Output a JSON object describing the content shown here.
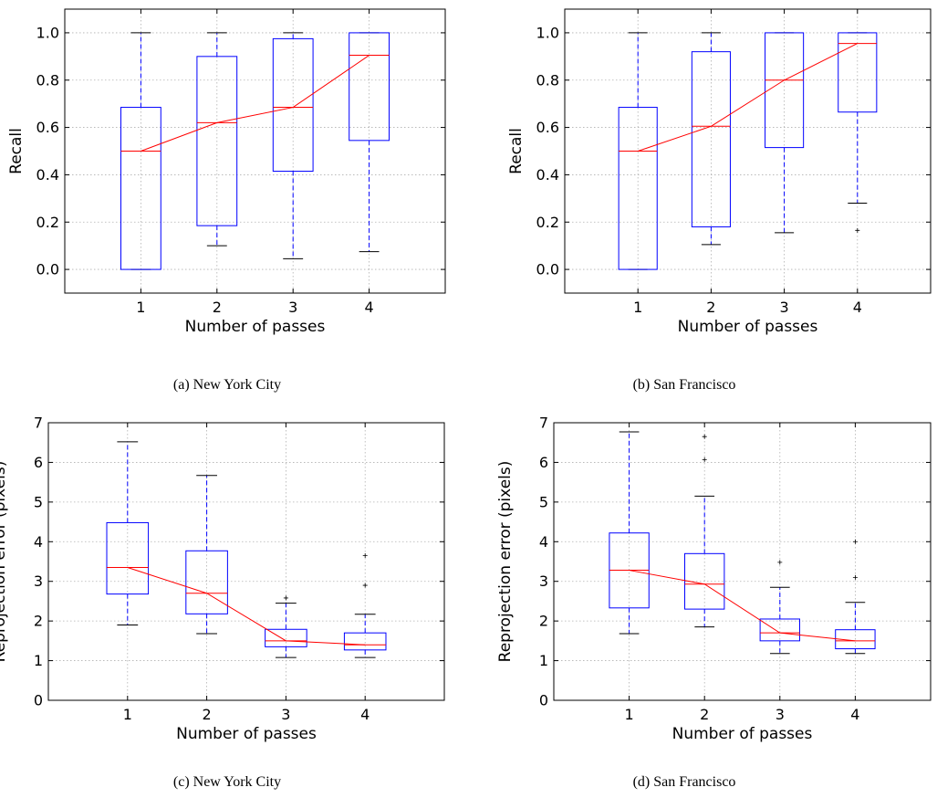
{
  "charts": [
    {
      "type": "box",
      "caption": "(a) New York City",
      "xlabel": "Number of passes",
      "ylabel": "Recall",
      "categories": [
        "1",
        "2",
        "3",
        "4"
      ],
      "ylim": [
        -0.1,
        1.1
      ],
      "yticks": [
        0.0,
        0.2,
        0.4,
        0.6,
        0.8,
        1.0
      ],
      "ytick_labels": [
        "0.0",
        "0.2",
        "0.4",
        "0.6",
        "0.8",
        "1.0"
      ],
      "grid": true,
      "box_color": "#0000ff",
      "median_color": "#ff0000",
      "trend_color": "#ff0000",
      "boxes": [
        {
          "whislo": 0.0,
          "q1": 0.0,
          "med": 0.5,
          "q3": 0.685,
          "whishi": 1.0,
          "fliers": []
        },
        {
          "whislo": 0.1,
          "q1": 0.185,
          "med": 0.62,
          "q3": 0.9,
          "whishi": 1.0,
          "fliers": []
        },
        {
          "whislo": 0.045,
          "q1": 0.415,
          "med": 0.685,
          "q3": 0.975,
          "whishi": 1.0,
          "fliers": []
        },
        {
          "whislo": 0.075,
          "q1": 0.545,
          "med": 0.905,
          "q3": 1.0,
          "whishi": 1.0,
          "fliers": []
        }
      ],
      "trend": [
        0.5,
        0.62,
        0.685,
        0.905
      ]
    },
    {
      "type": "box",
      "caption": "(b) San Francisco",
      "xlabel": "Number of passes",
      "ylabel": "Recall",
      "categories": [
        "1",
        "2",
        "3",
        "4"
      ],
      "ylim": [
        -0.1,
        1.1
      ],
      "yticks": [
        0.0,
        0.2,
        0.4,
        0.6,
        0.8,
        1.0
      ],
      "ytick_labels": [
        "0.0",
        "0.2",
        "0.4",
        "0.6",
        "0.8",
        "1.0"
      ],
      "grid": true,
      "box_color": "#0000ff",
      "median_color": "#ff0000",
      "trend_color": "#ff0000",
      "boxes": [
        {
          "whislo": 0.0,
          "q1": 0.0,
          "med": 0.5,
          "q3": 0.685,
          "whishi": 1.0,
          "fliers": []
        },
        {
          "whislo": 0.105,
          "q1": 0.18,
          "med": 0.605,
          "q3": 0.92,
          "whishi": 1.0,
          "fliers": []
        },
        {
          "whislo": 0.155,
          "q1": 0.515,
          "med": 0.8,
          "q3": 1.0,
          "whishi": 1.0,
          "fliers": []
        },
        {
          "whislo": 0.28,
          "q1": 0.665,
          "med": 0.955,
          "q3": 1.0,
          "whishi": 1.0,
          "fliers": [
            0.165
          ]
        }
      ],
      "trend": [
        0.5,
        0.605,
        0.8,
        0.955
      ]
    },
    {
      "type": "box",
      "caption": "(c) New York City",
      "xlabel": "Number of passes",
      "ylabel": "Reprojection error (pixels)",
      "categories": [
        "1",
        "2",
        "3",
        "4"
      ],
      "ylim": [
        0,
        7
      ],
      "yticks": [
        0,
        1,
        2,
        3,
        4,
        5,
        6,
        7
      ],
      "ytick_labels": [
        "0",
        "1",
        "2",
        "3",
        "4",
        "5",
        "6",
        "7"
      ],
      "grid": true,
      "box_color": "#0000ff",
      "median_color": "#ff0000",
      "trend_color": "#ff0000",
      "boxes": [
        {
          "whislo": 1.9,
          "q1": 2.68,
          "med": 3.35,
          "q3": 4.48,
          "whishi": 6.52,
          "fliers": []
        },
        {
          "whislo": 1.68,
          "q1": 2.18,
          "med": 2.7,
          "q3": 3.77,
          "whishi": 5.67,
          "fliers": []
        },
        {
          "whislo": 1.08,
          "q1": 1.35,
          "med": 1.5,
          "q3": 1.79,
          "whishi": 2.45,
          "fliers": [
            2.58
          ]
        },
        {
          "whislo": 1.08,
          "q1": 1.27,
          "med": 1.4,
          "q3": 1.7,
          "whishi": 2.17,
          "fliers": [
            2.9,
            3.65
          ]
        }
      ],
      "trend": [
        3.35,
        2.7,
        1.5,
        1.4
      ]
    },
    {
      "type": "box",
      "caption": "(d) San Francisco",
      "xlabel": "Number of passes",
      "ylabel": "Reprojection error (pixels)",
      "categories": [
        "1",
        "2",
        "3",
        "4"
      ],
      "ylim": [
        0,
        7
      ],
      "yticks": [
        0,
        1,
        2,
        3,
        4,
        5,
        6,
        7
      ],
      "ytick_labels": [
        "0",
        "1",
        "2",
        "3",
        "4",
        "5",
        "6",
        "7"
      ],
      "grid": true,
      "box_color": "#0000ff",
      "median_color": "#ff0000",
      "trend_color": "#ff0000",
      "boxes": [
        {
          "whislo": 1.68,
          "q1": 2.33,
          "med": 3.28,
          "q3": 4.22,
          "whishi": 6.77,
          "fliers": []
        },
        {
          "whislo": 1.85,
          "q1": 2.3,
          "med": 2.93,
          "q3": 3.7,
          "whishi": 5.15,
          "fliers": [
            6.07,
            6.65
          ]
        },
        {
          "whislo": 1.18,
          "q1": 1.5,
          "med": 1.7,
          "q3": 2.05,
          "whishi": 2.85,
          "fliers": [
            3.48
          ]
        },
        {
          "whislo": 1.18,
          "q1": 1.3,
          "med": 1.5,
          "q3": 1.78,
          "whishi": 2.47,
          "fliers": [
            3.1,
            4.0
          ]
        }
      ],
      "trend": [
        3.28,
        2.93,
        1.7,
        1.5
      ]
    }
  ]
}
